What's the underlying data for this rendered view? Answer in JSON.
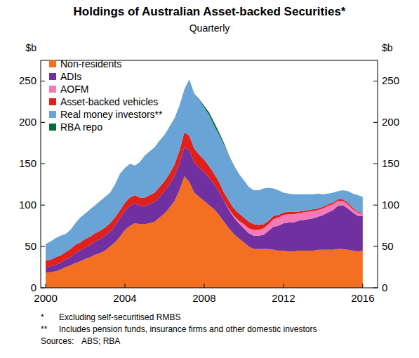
{
  "chart_data": {
    "type": "area",
    "title": "Holdings of Australian Asset-backed Securities*",
    "subtitle": "Quarterly",
    "ylabel": "$b",
    "stacked": true,
    "grid": false,
    "legend": "top-left",
    "xlim": [
      1999.75,
      2016.75
    ],
    "xticks": [
      2000,
      2004,
      2008,
      2012,
      2016
    ],
    "ylim": [
      0,
      275
    ],
    "yticks": [
      0,
      50,
      100,
      150,
      200,
      250
    ],
    "x": [
      2000,
      2000.25,
      2000.5,
      2000.75,
      2001,
      2001.25,
      2001.5,
      2001.75,
      2002,
      2002.25,
      2002.5,
      2002.75,
      2003,
      2003.25,
      2003.5,
      2003.75,
      2004,
      2004.25,
      2004.5,
      2004.75,
      2005,
      2005.25,
      2005.5,
      2005.75,
      2006,
      2006.25,
      2006.5,
      2006.75,
      2007,
      2007.25,
      2007.5,
      2007.75,
      2008,
      2008.25,
      2008.5,
      2008.75,
      2009,
      2009.25,
      2009.5,
      2009.75,
      2010,
      2010.25,
      2010.5,
      2010.75,
      2011,
      2011.25,
      2011.5,
      2011.75,
      2012,
      2012.25,
      2012.5,
      2012.75,
      2013,
      2013.25,
      2013.5,
      2013.75,
      2014,
      2014.25,
      2014.5,
      2014.75,
      2015,
      2015.25,
      2015.5,
      2015.75,
      2016
    ],
    "series": [
      {
        "name": "Non-residents",
        "color": "#f36f21",
        "values": [
          18,
          19,
          20,
          22,
          25,
          27,
          30,
          32,
          35,
          37,
          40,
          42,
          45,
          50,
          55,
          62,
          70,
          75,
          78,
          77,
          77,
          78,
          80,
          85,
          90,
          97,
          105,
          118,
          135,
          128,
          115,
          110,
          105,
          100,
          95,
          88,
          80,
          72,
          65,
          60,
          55,
          50,
          47,
          47,
          47,
          47,
          46,
          45,
          45,
          44,
          44,
          45,
          45,
          45,
          45,
          46,
          46,
          46,
          46,
          47,
          47,
          46,
          45,
          44,
          45
        ]
      },
      {
        "name": "ADIs",
        "color": "#7030a0",
        "values": [
          7,
          7,
          8,
          8,
          9,
          10,
          12,
          13,
          14,
          15,
          16,
          17,
          18,
          18,
          20,
          22,
          23,
          24,
          24,
          22,
          22,
          23,
          24,
          25,
          27,
          28,
          30,
          32,
          35,
          38,
          36,
          35,
          35,
          33,
          30,
          28,
          25,
          22,
          20,
          18,
          17,
          16,
          16,
          16,
          17,
          22,
          28,
          30,
          33,
          35,
          35,
          36,
          37,
          38,
          39,
          40,
          42,
          45,
          48,
          52,
          53,
          50,
          46,
          43,
          42
        ]
      },
      {
        "name": "AOFM",
        "color": "#f47ab8",
        "values": [
          0,
          0,
          0,
          0,
          0,
          0,
          0,
          0,
          0,
          0,
          0,
          0,
          0,
          0,
          0,
          0,
          0,
          0,
          0,
          0,
          0,
          0,
          0,
          0,
          0,
          0,
          0,
          0,
          0,
          0,
          0,
          0,
          0,
          0,
          0,
          0,
          0,
          1,
          2,
          3,
          5,
          6,
          7,
          7,
          8,
          8,
          9,
          10,
          10,
          10,
          10,
          9,
          9,
          9,
          9,
          8,
          8,
          8,
          7,
          6,
          5,
          5,
          4,
          4,
          3
        ]
      },
      {
        "name": "Asset-backed vehicles",
        "color": "#e0201b",
        "values": [
          8,
          8,
          9,
          9,
          9,
          10,
          10,
          10,
          10,
          10,
          10,
          10,
          10,
          10,
          10,
          10,
          10,
          10,
          10,
          10,
          10,
          11,
          11,
          12,
          12,
          13,
          14,
          16,
          18,
          18,
          17,
          16,
          15,
          14,
          13,
          12,
          10,
          10,
          9,
          9,
          8,
          8,
          7,
          6,
          5,
          4,
          4,
          3,
          3,
          3,
          3,
          2,
          2,
          2,
          2,
          2,
          2,
          2,
          2,
          2,
          2,
          2,
          2,
          1,
          1
        ]
      },
      {
        "name": "Real money investors**",
        "color": "#6aa3d5",
        "values": [
          20,
          22,
          23,
          24,
          22,
          23,
          26,
          30,
          31,
          33,
          34,
          36,
          37,
          37,
          40,
          44,
          42,
          41,
          36,
          43,
          51,
          53,
          55,
          56,
          56,
          57,
          56,
          54,
          52,
          68,
          67,
          66,
          63,
          62,
          58,
          57,
          58,
          54,
          51,
          48,
          45,
          42,
          41,
          42,
          43,
          40,
          33,
          30,
          24,
          22,
          21,
          21,
          20,
          19,
          18,
          18,
          15,
          13,
          12,
          10,
          11,
          14,
          17,
          20,
          19
        ]
      },
      {
        "name": "RBA repo",
        "color": "#006a38",
        "values": [
          0,
          0,
          0,
          0,
          0,
          0,
          0,
          0,
          0,
          0,
          0,
          0,
          0,
          0,
          0,
          0,
          0,
          0,
          0,
          0,
          0,
          0,
          0,
          0,
          0,
          0,
          0,
          0,
          0,
          0,
          0,
          1,
          2,
          3,
          4,
          3,
          2,
          1,
          1,
          0,
          0,
          0,
          0,
          0,
          0,
          0,
          0,
          0,
          0,
          0,
          0,
          0,
          0,
          0,
          0,
          0,
          0,
          0,
          0,
          0,
          0,
          0,
          0,
          0,
          0
        ]
      }
    ],
    "notes": [
      {
        "mark": "*",
        "text": "Excluding self-securitised RMBS"
      },
      {
        "mark": "**",
        "text": "Includes pension funds, insurance firms and other domestic investors"
      }
    ],
    "source": {
      "label": "Sources:",
      "text": "ABS; RBA"
    }
  }
}
